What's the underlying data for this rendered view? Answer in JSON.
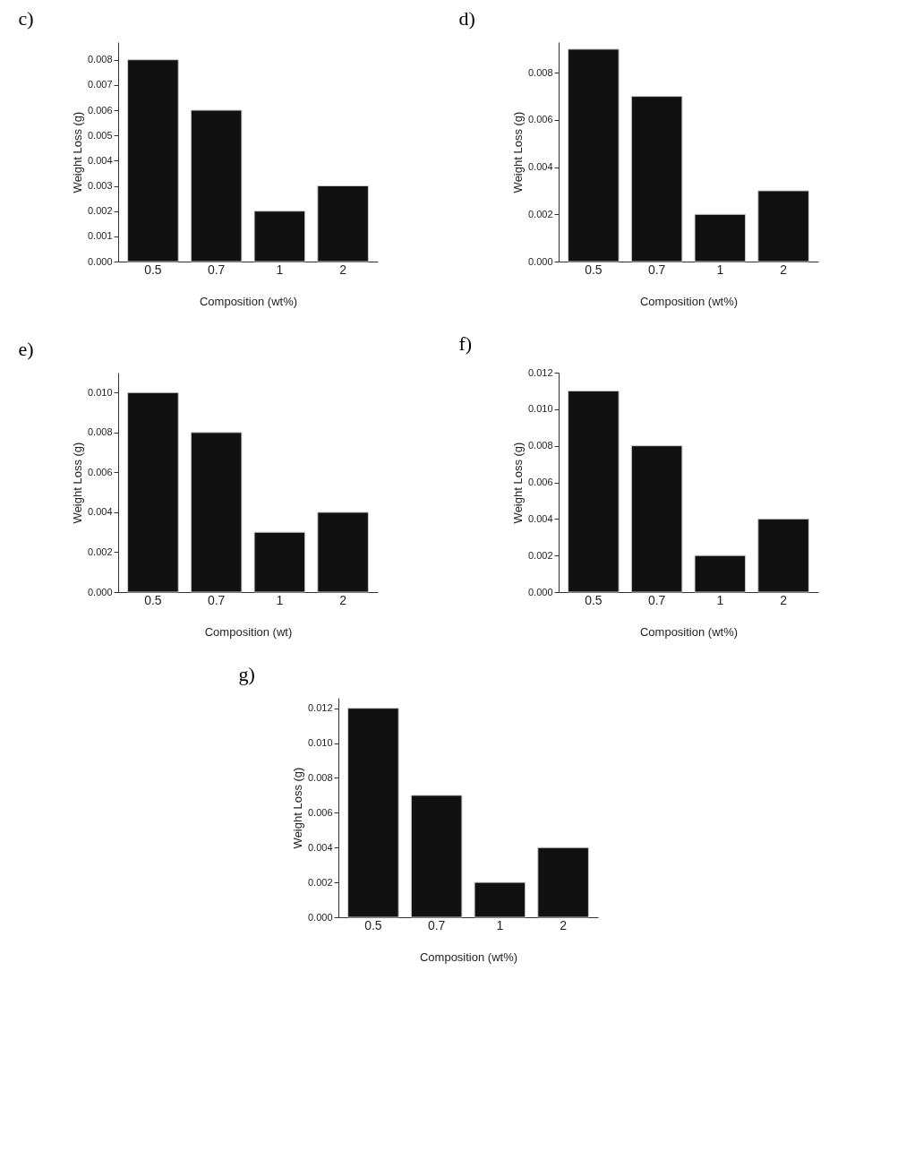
{
  "chart_data": [
    {
      "type": "bar",
      "title": "c)",
      "xlabel": "Composition (wt%)",
      "ylabel": "Weight Loss (g)",
      "categories": [
        "0.5",
        "0.7",
        "1",
        "2"
      ],
      "values": [
        0.008,
        0.006,
        0.002,
        0.003
      ],
      "color": "#111111",
      "ylim": [
        0,
        0.0087
      ],
      "yticks": [
        {
          "value": 0,
          "label": "0.000"
        },
        {
          "value": 0.001,
          "label": "0.001"
        },
        {
          "value": 0.002,
          "label": "0.002"
        },
        {
          "value": 0.003,
          "label": "0.003"
        },
        {
          "value": 0.004,
          "label": "0.004"
        },
        {
          "value": 0.005,
          "label": "0.005"
        },
        {
          "value": 0.006,
          "label": "0.006"
        },
        {
          "value": 0.007,
          "label": "0.007"
        },
        {
          "value": 0.008,
          "label": "0.008"
        }
      ]
    },
    {
      "type": "bar",
      "title": "d)",
      "xlabel": "Composition (wt%)",
      "ylabel": "Weight Loss (g)",
      "categories": [
        "0.5",
        "0.7",
        "1",
        "2"
      ],
      "values": [
        0.009,
        0.007,
        0.002,
        0.003
      ],
      "color": "#111111",
      "ylim": [
        0,
        0.0093
      ],
      "yticks": [
        {
          "value": 0,
          "label": "0.000"
        },
        {
          "value": 0.002,
          "label": "0.002"
        },
        {
          "value": 0.004,
          "label": "0.004"
        },
        {
          "value": 0.006,
          "label": "0.006"
        },
        {
          "value": 0.008,
          "label": "0.008"
        }
      ]
    },
    {
      "type": "bar",
      "title": "e)",
      "xlabel": "Composition (wt)",
      "ylabel": "Weight Loss (g)",
      "categories": [
        "0.5",
        "0.7",
        "1",
        "2"
      ],
      "values": [
        0.01,
        0.008,
        0.003,
        0.004
      ],
      "color": "#111111",
      "ylim": [
        0,
        0.011
      ],
      "yticks": [
        {
          "value": 0,
          "label": "0.000"
        },
        {
          "value": 0.002,
          "label": "0.002"
        },
        {
          "value": 0.004,
          "label": "0.004"
        },
        {
          "value": 0.006,
          "label": "0.006"
        },
        {
          "value": 0.008,
          "label": "0.008"
        },
        {
          "value": 0.01,
          "label": "0.010"
        }
      ]
    },
    {
      "type": "bar",
      "title": "f)",
      "xlabel": "Composition (wt%)",
      "ylabel": "Weight Loss (g)",
      "categories": [
        "0.5",
        "0.7",
        "1",
        "2"
      ],
      "values": [
        0.011,
        0.008,
        0.002,
        0.004
      ],
      "color": "#111111",
      "ylim": [
        0,
        0.012
      ],
      "yticks": [
        {
          "value": 0,
          "label": "0.000"
        },
        {
          "value": 0.002,
          "label": "0.002"
        },
        {
          "value": 0.004,
          "label": "0.004"
        },
        {
          "value": 0.006,
          "label": "0.006"
        },
        {
          "value": 0.008,
          "label": "0.008"
        },
        {
          "value": 0.01,
          "label": "0.010"
        },
        {
          "value": 0.012,
          "label": "0.012"
        }
      ]
    },
    {
      "type": "bar",
      "title": "g)",
      "xlabel": "Composition (wt%)",
      "ylabel": "Weight Loss (g)",
      "categories": [
        "0.5",
        "0.7",
        "1",
        "2"
      ],
      "values": [
        0.012,
        0.007,
        0.002,
        0.004
      ],
      "color": "#111111",
      "ylim": [
        0,
        0.0126
      ],
      "yticks": [
        {
          "value": 0,
          "label": "0.000"
        },
        {
          "value": 0.002,
          "label": "0.002"
        },
        {
          "value": 0.004,
          "label": "0.004"
        },
        {
          "value": 0.006,
          "label": "0.006"
        },
        {
          "value": 0.008,
          "label": "0.008"
        },
        {
          "value": 0.01,
          "label": "0.010"
        },
        {
          "value": 0.012,
          "label": "0.012"
        }
      ]
    }
  ]
}
